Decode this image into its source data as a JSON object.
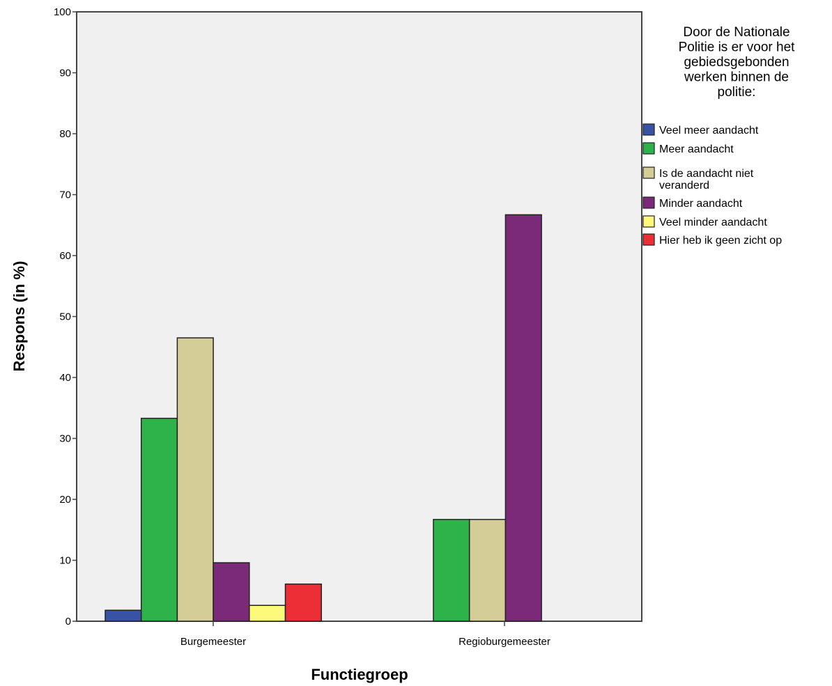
{
  "chart_data": {
    "type": "bar",
    "xlabel": "Functiegroep",
    "ylabel": "Respons (in %)",
    "ylim": [
      0,
      100
    ],
    "yticks": [
      "0",
      "10",
      "20",
      "30",
      "40",
      "50",
      "60",
      "70",
      "80",
      "90",
      "100"
    ],
    "grid": false,
    "categories": [
      "Burgemeester",
      "Regioburgemeester"
    ],
    "legend": {
      "title": "Door de Nationale Politie is er voor het gebiedsgebonden werken binnen de politie:",
      "title_lines": [
        "Door de Nationale",
        "Politie is er voor het",
        "gebiedsgebonden",
        "werken binnen de",
        "politie:"
      ],
      "placement": "right"
    },
    "series": [
      {
        "name": "Veel meer aandacht",
        "label_lines": [
          "Veel meer aandacht"
        ],
        "color": "#3953a4",
        "values": [
          1.8,
          null
        ]
      },
      {
        "name": "Meer aandacht",
        "label_lines": [
          "Meer aandacht"
        ],
        "color": "#2eb34a",
        "values": [
          33.3,
          16.7
        ]
      },
      {
        "name": "Is de aandacht niet veranderd",
        "label_lines": [
          "Is de aandacht niet",
          "veranderd"
        ],
        "color": "#d4cd98",
        "values": [
          46.5,
          16.7
        ]
      },
      {
        "name": "Minder aandacht",
        "label_lines": [
          "Minder aandacht"
        ],
        "color": "#7b2a7a",
        "values": [
          9.6,
          66.7
        ]
      },
      {
        "name": "Veel minder aandacht",
        "label_lines": [
          "Veel minder aandacht"
        ],
        "color": "#fdf97b",
        "values": [
          2.6,
          null
        ]
      },
      {
        "name": "Hier heb ik geen zicht op",
        "label_lines": [
          "Hier heb ik geen zicht op"
        ],
        "color": "#ec2f36",
        "values": [
          6.1,
          null
        ]
      }
    ]
  }
}
